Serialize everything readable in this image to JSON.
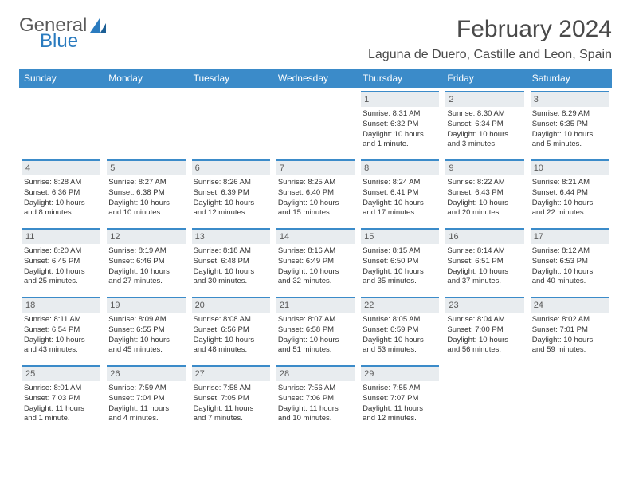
{
  "logo": {
    "text_general": "General",
    "text_blue": "Blue"
  },
  "title": "February 2024",
  "location": "Laguna de Duero, Castille and Leon, Spain",
  "dayHeaders": [
    "Sunday",
    "Monday",
    "Tuesday",
    "Wednesday",
    "Thursday",
    "Friday",
    "Saturday"
  ],
  "colors": {
    "header_bg": "#3b8bc9",
    "header_text": "#ffffff",
    "daynum_bg": "#e8ecef",
    "daynum_border": "#3b8bc9",
    "body_text": "#333333"
  },
  "weeks": [
    [
      null,
      null,
      null,
      null,
      {
        "num": "1",
        "sunrise": "Sunrise: 8:31 AM",
        "sunset": "Sunset: 6:32 PM",
        "daylight": "Daylight: 10 hours and 1 minute."
      },
      {
        "num": "2",
        "sunrise": "Sunrise: 8:30 AM",
        "sunset": "Sunset: 6:34 PM",
        "daylight": "Daylight: 10 hours and 3 minutes."
      },
      {
        "num": "3",
        "sunrise": "Sunrise: 8:29 AM",
        "sunset": "Sunset: 6:35 PM",
        "daylight": "Daylight: 10 hours and 5 minutes."
      }
    ],
    [
      {
        "num": "4",
        "sunrise": "Sunrise: 8:28 AM",
        "sunset": "Sunset: 6:36 PM",
        "daylight": "Daylight: 10 hours and 8 minutes."
      },
      {
        "num": "5",
        "sunrise": "Sunrise: 8:27 AM",
        "sunset": "Sunset: 6:38 PM",
        "daylight": "Daylight: 10 hours and 10 minutes."
      },
      {
        "num": "6",
        "sunrise": "Sunrise: 8:26 AM",
        "sunset": "Sunset: 6:39 PM",
        "daylight": "Daylight: 10 hours and 12 minutes."
      },
      {
        "num": "7",
        "sunrise": "Sunrise: 8:25 AM",
        "sunset": "Sunset: 6:40 PM",
        "daylight": "Daylight: 10 hours and 15 minutes."
      },
      {
        "num": "8",
        "sunrise": "Sunrise: 8:24 AM",
        "sunset": "Sunset: 6:41 PM",
        "daylight": "Daylight: 10 hours and 17 minutes."
      },
      {
        "num": "9",
        "sunrise": "Sunrise: 8:22 AM",
        "sunset": "Sunset: 6:43 PM",
        "daylight": "Daylight: 10 hours and 20 minutes."
      },
      {
        "num": "10",
        "sunrise": "Sunrise: 8:21 AM",
        "sunset": "Sunset: 6:44 PM",
        "daylight": "Daylight: 10 hours and 22 minutes."
      }
    ],
    [
      {
        "num": "11",
        "sunrise": "Sunrise: 8:20 AM",
        "sunset": "Sunset: 6:45 PM",
        "daylight": "Daylight: 10 hours and 25 minutes."
      },
      {
        "num": "12",
        "sunrise": "Sunrise: 8:19 AM",
        "sunset": "Sunset: 6:46 PM",
        "daylight": "Daylight: 10 hours and 27 minutes."
      },
      {
        "num": "13",
        "sunrise": "Sunrise: 8:18 AM",
        "sunset": "Sunset: 6:48 PM",
        "daylight": "Daylight: 10 hours and 30 minutes."
      },
      {
        "num": "14",
        "sunrise": "Sunrise: 8:16 AM",
        "sunset": "Sunset: 6:49 PM",
        "daylight": "Daylight: 10 hours and 32 minutes."
      },
      {
        "num": "15",
        "sunrise": "Sunrise: 8:15 AM",
        "sunset": "Sunset: 6:50 PM",
        "daylight": "Daylight: 10 hours and 35 minutes."
      },
      {
        "num": "16",
        "sunrise": "Sunrise: 8:14 AM",
        "sunset": "Sunset: 6:51 PM",
        "daylight": "Daylight: 10 hours and 37 minutes."
      },
      {
        "num": "17",
        "sunrise": "Sunrise: 8:12 AM",
        "sunset": "Sunset: 6:53 PM",
        "daylight": "Daylight: 10 hours and 40 minutes."
      }
    ],
    [
      {
        "num": "18",
        "sunrise": "Sunrise: 8:11 AM",
        "sunset": "Sunset: 6:54 PM",
        "daylight": "Daylight: 10 hours and 43 minutes."
      },
      {
        "num": "19",
        "sunrise": "Sunrise: 8:09 AM",
        "sunset": "Sunset: 6:55 PM",
        "daylight": "Daylight: 10 hours and 45 minutes."
      },
      {
        "num": "20",
        "sunrise": "Sunrise: 8:08 AM",
        "sunset": "Sunset: 6:56 PM",
        "daylight": "Daylight: 10 hours and 48 minutes."
      },
      {
        "num": "21",
        "sunrise": "Sunrise: 8:07 AM",
        "sunset": "Sunset: 6:58 PM",
        "daylight": "Daylight: 10 hours and 51 minutes."
      },
      {
        "num": "22",
        "sunrise": "Sunrise: 8:05 AM",
        "sunset": "Sunset: 6:59 PM",
        "daylight": "Daylight: 10 hours and 53 minutes."
      },
      {
        "num": "23",
        "sunrise": "Sunrise: 8:04 AM",
        "sunset": "Sunset: 7:00 PM",
        "daylight": "Daylight: 10 hours and 56 minutes."
      },
      {
        "num": "24",
        "sunrise": "Sunrise: 8:02 AM",
        "sunset": "Sunset: 7:01 PM",
        "daylight": "Daylight: 10 hours and 59 minutes."
      }
    ],
    [
      {
        "num": "25",
        "sunrise": "Sunrise: 8:01 AM",
        "sunset": "Sunset: 7:03 PM",
        "daylight": "Daylight: 11 hours and 1 minute."
      },
      {
        "num": "26",
        "sunrise": "Sunrise: 7:59 AM",
        "sunset": "Sunset: 7:04 PM",
        "daylight": "Daylight: 11 hours and 4 minutes."
      },
      {
        "num": "27",
        "sunrise": "Sunrise: 7:58 AM",
        "sunset": "Sunset: 7:05 PM",
        "daylight": "Daylight: 11 hours and 7 minutes."
      },
      {
        "num": "28",
        "sunrise": "Sunrise: 7:56 AM",
        "sunset": "Sunset: 7:06 PM",
        "daylight": "Daylight: 11 hours and 10 minutes."
      },
      {
        "num": "29",
        "sunrise": "Sunrise: 7:55 AM",
        "sunset": "Sunset: 7:07 PM",
        "daylight": "Daylight: 11 hours and 12 minutes."
      },
      null,
      null
    ]
  ]
}
